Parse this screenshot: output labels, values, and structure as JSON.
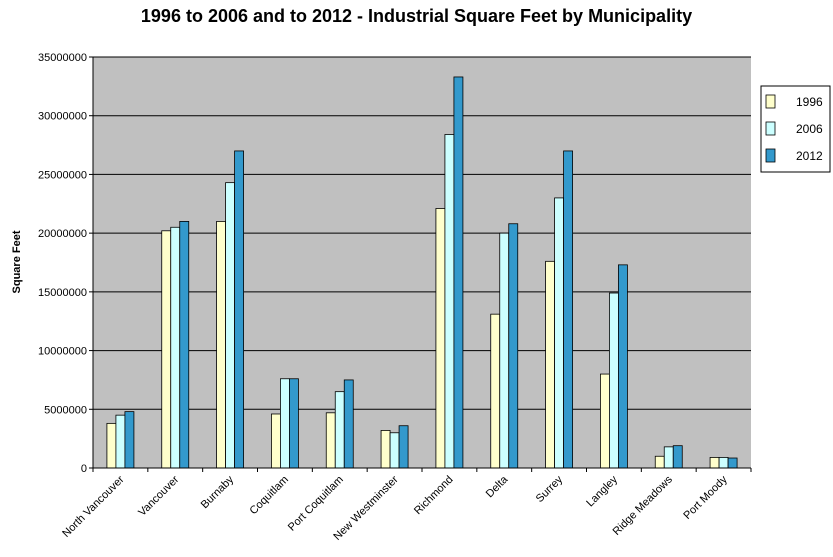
{
  "chart_data": {
    "type": "bar",
    "title": "1996 to 2006 and to 2012 - Industrial Square Feet by Municipality",
    "xlabel": "",
    "ylabel": "Square Feet",
    "ylim": [
      0,
      35000000
    ],
    "yticks": [
      0,
      5000000,
      10000000,
      15000000,
      20000000,
      25000000,
      30000000,
      35000000
    ],
    "ytick_labels": [
      "0",
      "5000000",
      "10000000",
      "15000000",
      "20000000",
      "25000000",
      "30000000",
      "35000000"
    ],
    "grid": true,
    "legend_position": "right",
    "categories": [
      "North Vancouver",
      "Vancouver",
      "Burnaby",
      "Coquitlam",
      "Port Coquitlam",
      "New Westminster",
      "Richmond",
      "Delta",
      "Surrey",
      "Langley",
      "Ridge Meadows",
      "Port Moody"
    ],
    "series": [
      {
        "name": "1996",
        "color": "#FFFFCC",
        "values": [
          3800000,
          20200000,
          21000000,
          4600000,
          4700000,
          3200000,
          22100000,
          13100000,
          17600000,
          8000000,
          1000000,
          900000
        ]
      },
      {
        "name": "2006",
        "color": "#CCFFFF",
        "values": [
          4500000,
          20500000,
          24300000,
          7600000,
          6500000,
          3000000,
          28400000,
          20000000,
          23000000,
          14900000,
          1800000,
          900000
        ]
      },
      {
        "name": "2012",
        "color": "#3399CC",
        "values": [
          4800000,
          21000000,
          27000000,
          7600000,
          7500000,
          3600000,
          33300000,
          20800000,
          27000000,
          17300000,
          1900000,
          850000
        ]
      }
    ],
    "colors": {
      "plot_bg": "#C0C0C0",
      "grid": "#000000"
    }
  }
}
